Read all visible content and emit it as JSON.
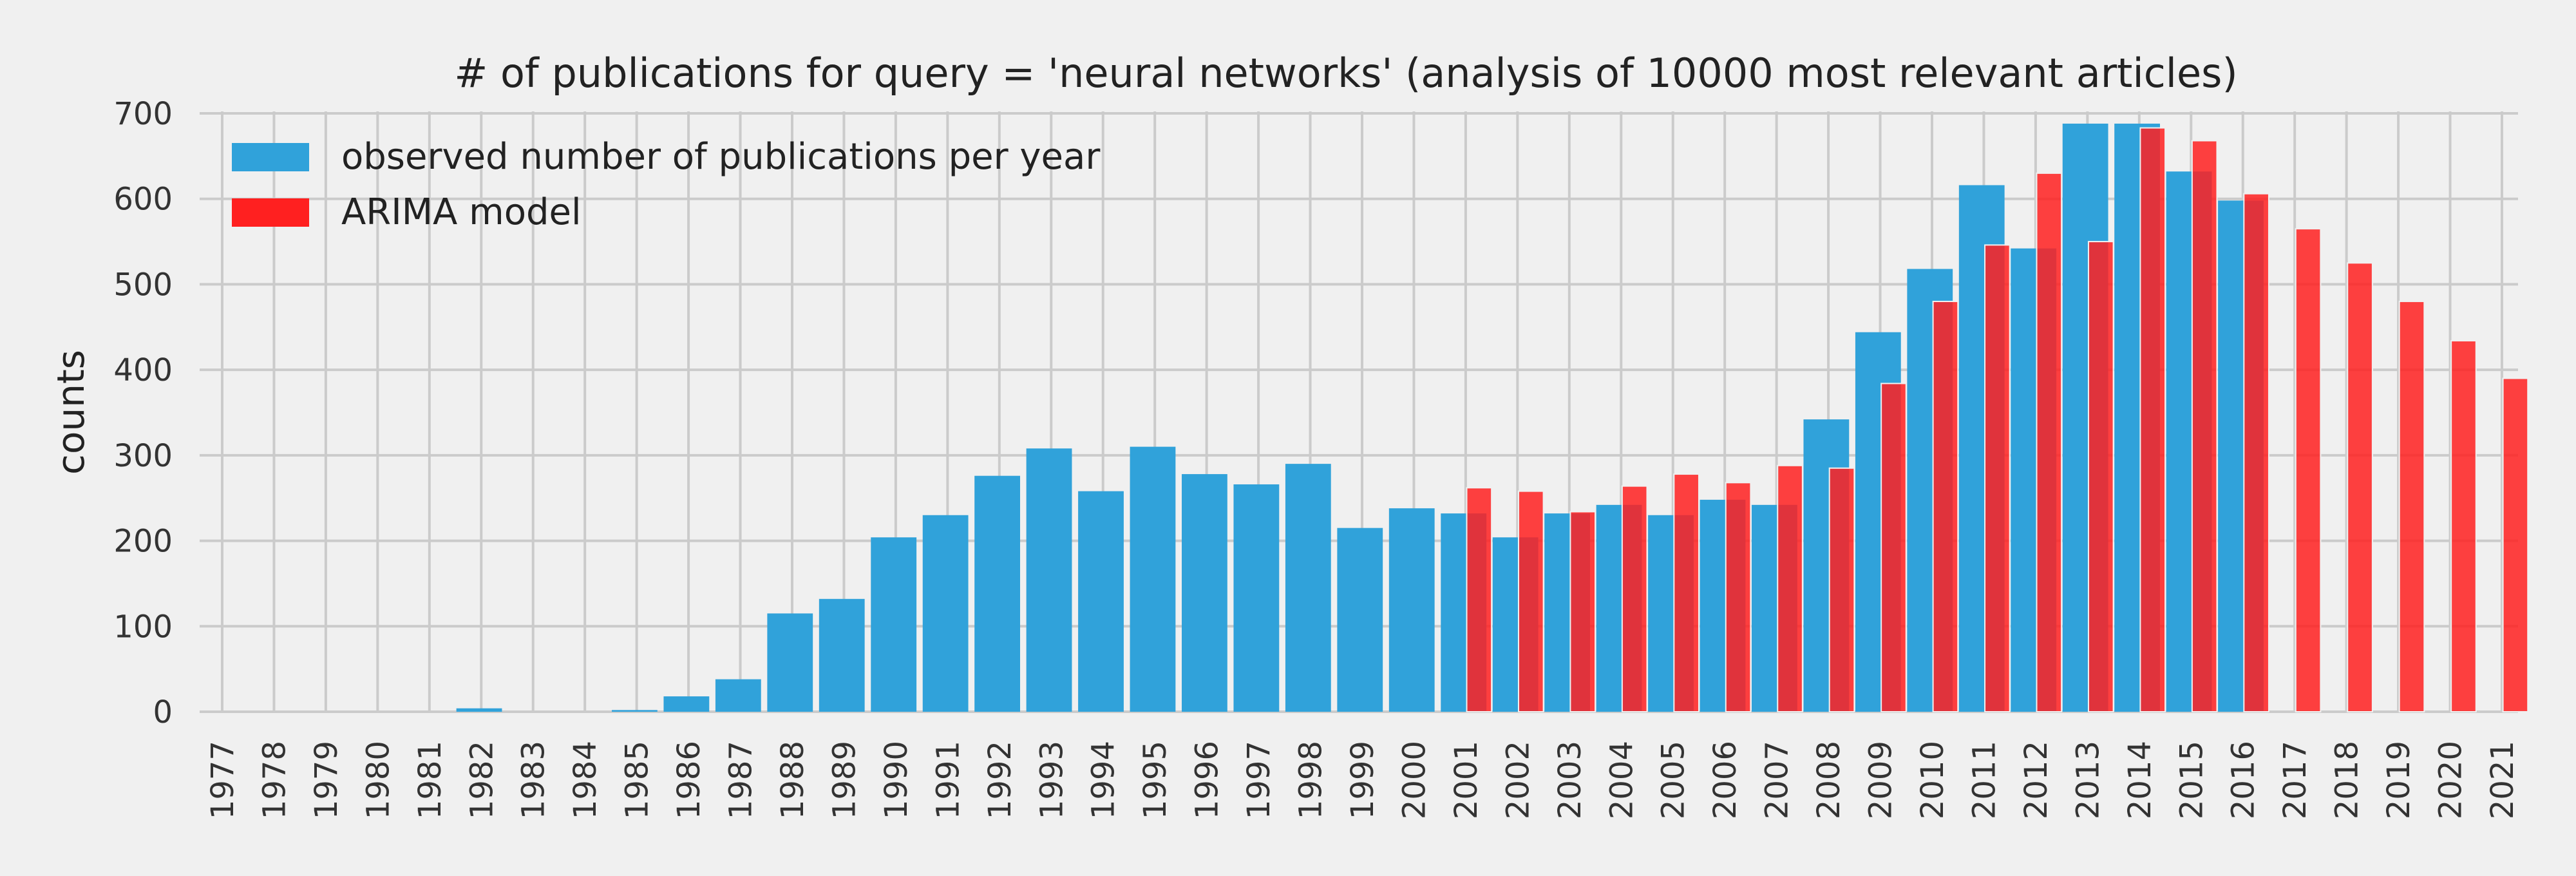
{
  "chart_data": {
    "type": "bar",
    "title": "# of publications for query = 'neural networks' (analysis of 10000 most relevant articles)",
    "xlabel": "",
    "ylabel": "counts",
    "ylim": [
      0,
      700
    ],
    "yticks": [
      0,
      100,
      200,
      300,
      400,
      500,
      600,
      700
    ],
    "grid": true,
    "legend_position": "top-left",
    "categories": [
      "1977",
      "1978",
      "1979",
      "1980",
      "1981",
      "1982",
      "1983",
      "1984",
      "1985",
      "1986",
      "1987",
      "1988",
      "1989",
      "1990",
      "1991",
      "1992",
      "1993",
      "1994",
      "1995",
      "1996",
      "1997",
      "1998",
      "1999",
      "2000",
      "2001",
      "2002",
      "2003",
      "2004",
      "2005",
      "2006",
      "2007",
      "2008",
      "2009",
      "2010",
      "2011",
      "2012",
      "2013",
      "2014",
      "2015",
      "2016",
      "2017",
      "2018",
      "2019",
      "2020",
      "2021"
    ],
    "series": [
      {
        "name": "observed number of publications per year",
        "color": "#30a2da",
        "values": [
          0,
          0,
          0,
          0,
          0,
          4,
          0,
          0,
          2,
          18,
          38,
          115,
          132,
          204,
          230,
          276,
          308,
          258,
          310,
          278,
          266,
          290,
          215,
          238,
          232,
          204,
          232,
          242,
          230,
          248,
          242,
          342,
          444,
          518,
          616,
          542,
          688,
          688,
          632,
          598,
          null,
          null,
          null,
          null,
          null
        ]
      },
      {
        "name": "ARIMA model",
        "color": "#ff2020",
        "values": [
          null,
          null,
          null,
          null,
          null,
          null,
          null,
          null,
          null,
          null,
          null,
          null,
          null,
          null,
          null,
          null,
          null,
          null,
          null,
          null,
          null,
          null,
          null,
          null,
          262,
          258,
          234,
          264,
          278,
          268,
          288,
          285,
          384,
          480,
          546,
          630,
          550,
          683,
          668,
          606,
          565,
          525,
          480,
          434,
          390
        ]
      }
    ]
  }
}
